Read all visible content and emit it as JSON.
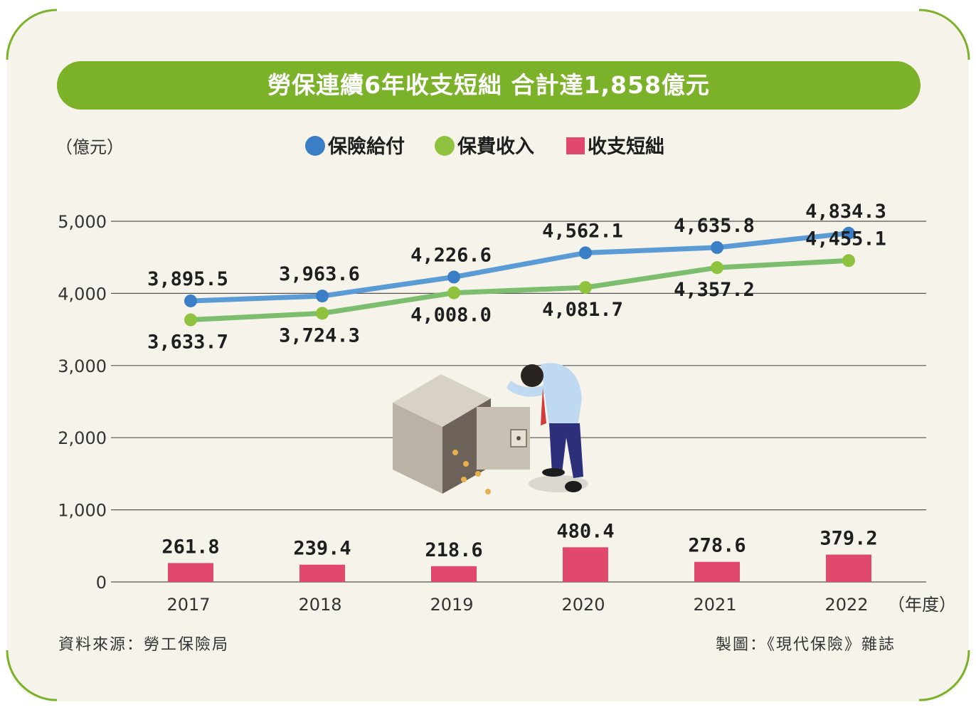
{
  "title": "勞保連續6年收支短絀 合計達1,858億元",
  "y_unit": "（億元）",
  "x_unit": "（年度）",
  "source": "資料來源：勞工保險局",
  "credit": "製圖：《現代保險》雜誌",
  "colors": {
    "frame": "#7bb22a",
    "benefit": "#5b9bd5",
    "benefit_dot": "#3a7fc6",
    "premium": "#7dbe6e",
    "premium_dot": "#8fc23f",
    "deficit": "#e1486d",
    "grid": "#555555",
    "background": "#f6f3ea"
  },
  "chart_data": {
    "type": "line",
    "categories": [
      "2017",
      "2018",
      "2019",
      "2020",
      "2021",
      "2022"
    ],
    "ylim": [
      0,
      5000
    ],
    "yticks": [
      0,
      1000,
      2000,
      3000,
      4000,
      5000
    ],
    "ytick_labels": [
      "0",
      "1,000",
      "2,000",
      "3,000",
      "4,000",
      "5,000"
    ],
    "series": [
      {
        "name": "保險給付",
        "type": "line",
        "values": [
          3895.5,
          3963.6,
          4226.6,
          4562.1,
          4635.8,
          4834.3
        ],
        "labels": [
          "3,895.5",
          "3,963.6",
          "4,226.6",
          "4,562.1",
          "4,635.8",
          "4,834.3"
        ]
      },
      {
        "name": "保費收入",
        "type": "line",
        "values": [
          3633.7,
          3724.3,
          4008.0,
          4081.7,
          4357.2,
          4455.1
        ],
        "labels": [
          "3,633.7",
          "3,724.3",
          "4,008.0",
          "4,081.7",
          "4,357.2",
          "4,455.1"
        ]
      },
      {
        "name": "收支短絀",
        "type": "bar",
        "values": [
          261.8,
          239.4,
          218.6,
          480.4,
          278.6,
          379.2
        ],
        "labels": [
          "261.8",
          "239.4",
          "218.6",
          "480.4",
          "278.6",
          "379.2"
        ]
      }
    ],
    "legend_position": "top-center",
    "grid": true
  }
}
